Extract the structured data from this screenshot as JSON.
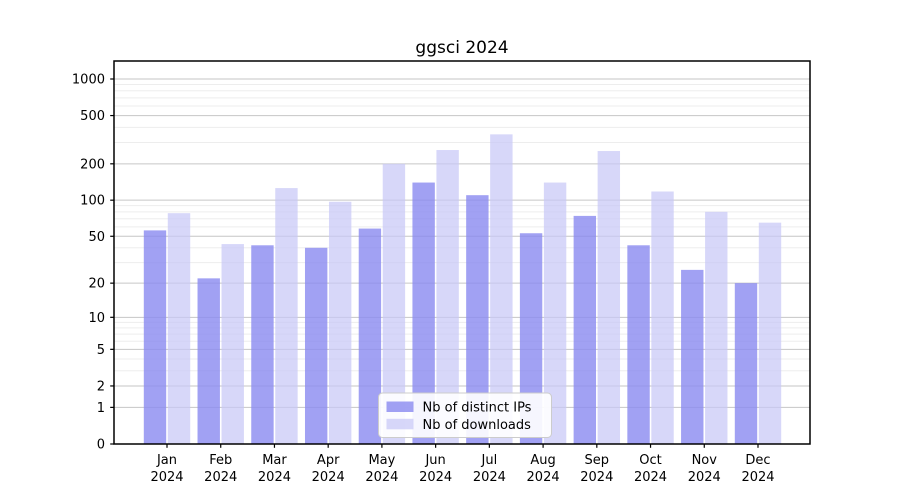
{
  "title": "ggsci 2024",
  "colors": {
    "background": "#ffffff",
    "ips_bar": "rgba(138,138,240,0.80)",
    "downloads_bar": "rgba(199,199,246,0.72)",
    "grid_major": "#c6c6c6",
    "grid_minor": "#ededed",
    "axis_spine": "#000000",
    "tick_label": "#000000",
    "legend_bg": "rgba(255,255,255,0.9)",
    "legend_border": "#cccccc"
  },
  "legend": {
    "items": [
      {
        "label": "Nb of distinct IPs",
        "series_index": 0
      },
      {
        "label": "Nb of downloads",
        "series_index": 1
      }
    ],
    "position": "bottom-center"
  },
  "axes": {
    "y_major_tick_labels": [
      "0",
      "1",
      "2",
      "5",
      "10",
      "20",
      "50",
      "100",
      "200",
      "500",
      "1000"
    ],
    "x_tick_labels_line1": [
      "Jan",
      "Feb",
      "Mar",
      "Apr",
      "May",
      "Jun",
      "Jul",
      "Aug",
      "Sep",
      "Oct",
      "Nov",
      "Dec"
    ],
    "x_tick_labels_line2": "2024"
  },
  "chart_data": {
    "type": "bar",
    "title": "ggsci 2024",
    "scale": "log1p",
    "categories": [
      "Jan 2024",
      "Feb 2024",
      "Mar 2024",
      "Apr 2024",
      "May 2024",
      "Jun 2024",
      "Jul 2024",
      "Aug 2024",
      "Sep 2024",
      "Oct 2024",
      "Nov 2024",
      "Dec 2024"
    ],
    "series": [
      {
        "name": "Nb of distinct IPs",
        "color": "rgba(138,138,240,0.80)",
        "values": [
          56,
          22,
          42,
          40,
          58,
          140,
          110,
          53,
          74,
          42,
          26,
          20
        ]
      },
      {
        "name": "Nb of downloads",
        "color": "rgba(199,199,246,0.72)",
        "values": [
          78,
          43,
          126,
          97,
          200,
          260,
          350,
          140,
          255,
          118,
          80,
          65
        ]
      }
    ],
    "xlabel": "",
    "ylabel": "",
    "ylim": [
      0,
      1400
    ],
    "y_major_ticks": [
      0,
      1,
      2,
      5,
      10,
      20,
      50,
      100,
      200,
      500,
      1000
    ],
    "y_minor_ticks": [
      3,
      4,
      6,
      7,
      8,
      9,
      30,
      40,
      60,
      70,
      80,
      90,
      300,
      400,
      600,
      700,
      800,
      900
    ],
    "grid": true,
    "legend_position": "lower center"
  }
}
